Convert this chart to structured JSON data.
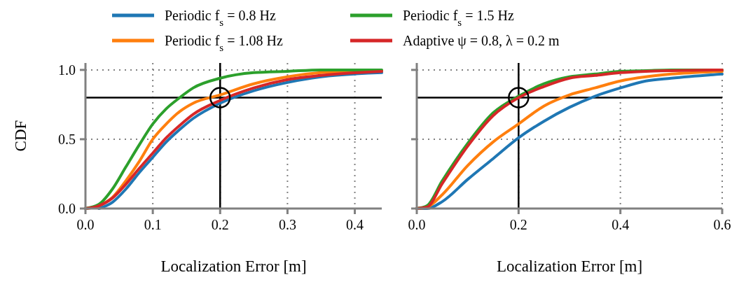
{
  "chart_data": [
    {
      "type": "line",
      "xlabel": "Localization Error [m]",
      "ylabel": "CDF",
      "xlim": [
        0,
        0.44
      ],
      "ylim": [
        0,
        1.05
      ],
      "xticks": [
        {
          "value": 0,
          "label": "0.0"
        },
        0.1,
        0.2,
        0.3,
        0.4
      ],
      "yticks": [
        {
          "value": 0,
          "label": "0.0"
        },
        0.5,
        {
          "value": 1,
          "label": "1.0"
        }
      ],
      "grid": true,
      "legend": "top",
      "line_style": "solid",
      "marker": "none",
      "x": [
        0,
        0.02,
        0.04,
        0.06,
        0.08,
        0.1,
        0.12,
        0.14,
        0.16,
        0.2,
        0.25,
        0.3,
        0.35,
        0.44
      ],
      "ref_lines": [
        {
          "axis": "y",
          "value": 0.8,
          "color": "#000000"
        },
        {
          "axis": "x",
          "value": 0.2,
          "color": "#000000"
        }
      ],
      "series": [
        {
          "name": "Periodic f$_{s}$ = 0.8 Hz",
          "color": "#1f77b4",
          "values": [
            null,
            0,
            0.045,
            0.14,
            0.26,
            0.37,
            0.48,
            0.57,
            0.65,
            0.76,
            0.85,
            0.91,
            0.95,
            0.98
          ]
        },
        {
          "name": "Periodic f$_{s}$ = 1.08 Hz",
          "color": "#ff7f0e",
          "values": [
            0,
            0.02,
            0.08,
            0.2,
            0.34,
            0.5,
            0.61,
            0.7,
            0.76,
            0.82,
            0.9,
            0.95,
            0.98,
            0.995
          ]
        },
        {
          "name": "Periodic f$_{s}$ = 1.5 Hz",
          "color": "#2ca02c",
          "values": [
            0,
            0.03,
            0.14,
            0.3,
            0.46,
            0.61,
            0.72,
            0.8,
            0.87,
            0.94,
            0.98,
            0.99,
            1.0,
            1.0
          ]
        },
        {
          "name": "Adaptive ψ = 0.8, λ = 0.2 m",
          "color": "#d62728",
          "values": [
            0,
            0.02,
            0.075,
            0.175,
            0.29,
            0.4,
            0.51,
            0.6,
            0.68,
            0.78,
            0.87,
            0.93,
            0.96,
            0.99
          ]
        }
      ]
    },
    {
      "type": "line",
      "xlabel": "Localization Error [m]",
      "xlim": [
        0,
        0.6
      ],
      "ylim": [
        0,
        1.05
      ],
      "xticks": [
        {
          "value": 0,
          "label": "0.0"
        },
        0.2,
        0.4,
        0.6
      ],
      "yticks": [
        {
          "value": 0,
          "label": null
        },
        {
          "value": 0.5,
          "label": null
        },
        {
          "value": 1,
          "label": null
        }
      ],
      "grid": true,
      "tick_labels": "x",
      "line_style": "solid",
      "marker": "none",
      "x": [
        0,
        0.02,
        0.05,
        0.1,
        0.15,
        0.2,
        0.25,
        0.3,
        0.35,
        0.4,
        0.45,
        0.5,
        0.6
      ],
      "ref_lines": [
        {
          "axis": "y",
          "value": 0.8,
          "color": "#000000"
        },
        {
          "axis": "x",
          "value": 0.2,
          "color": "#000000"
        }
      ],
      "series": [
        {
          "color": "#1f77b4",
          "values": [
            0,
            0,
            0.05,
            0.21,
            0.36,
            0.51,
            0.63,
            0.73,
            0.81,
            0.87,
            0.92,
            0.94,
            0.97
          ]
        },
        {
          "color": "#ff7f0e",
          "values": [
            0,
            0.01,
            0.1,
            0.31,
            0.48,
            0.61,
            0.74,
            0.82,
            0.87,
            0.92,
            0.95,
            0.97,
            0.99
          ]
        },
        {
          "color": "#2ca02c",
          "values": [
            0,
            0.02,
            0.2,
            0.47,
            0.69,
            0.81,
            0.9,
            0.95,
            0.97,
            0.99,
            0.995,
            1.0,
            1.0
          ]
        },
        {
          "color": "#d62728",
          "values": [
            0,
            0.01,
            0.18,
            0.45,
            0.67,
            0.8,
            0.88,
            0.94,
            0.96,
            0.98,
            0.99,
            0.995,
            1.0
          ]
        }
      ]
    }
  ]
}
